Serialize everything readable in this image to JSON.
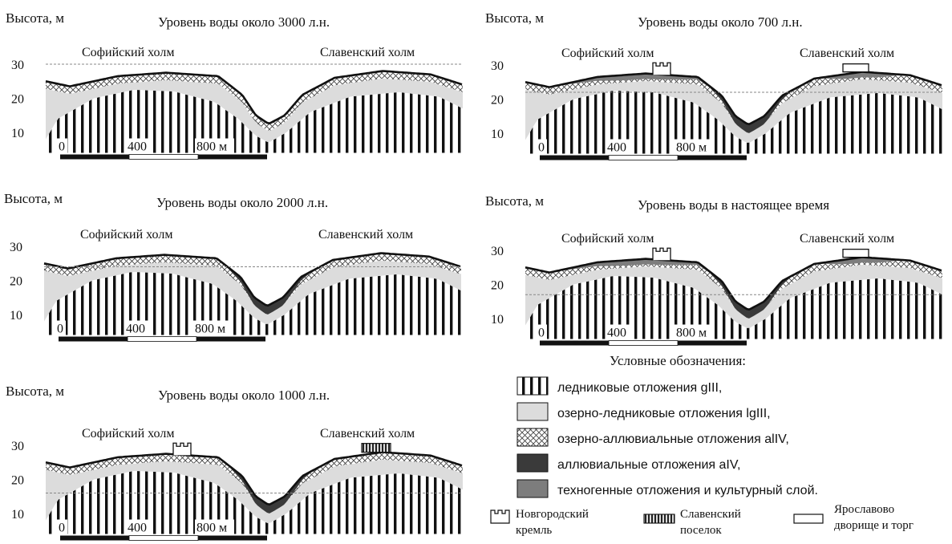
{
  "panels": [
    {
      "id": "p3000",
      "y_axis_label": "Высота, м",
      "title": "Уровень воды около 3000 л.н.",
      "hill_left": "Софийский холм",
      "hill_right": "Славенский холм",
      "y_ticks": [
        "30",
        "20",
        "10"
      ],
      "scale_labels": [
        "0",
        "400",
        "800 м"
      ],
      "water_level_m": 30,
      "layers": [
        "glacial",
        "lake_glacial",
        "lake_alluvial"
      ],
      "structures": []
    },
    {
      "id": "p700",
      "y_axis_label": "Высота, м",
      "title": "Уровень воды около 700 л.н.",
      "hill_left": "Софийский холм",
      "hill_right": "Славенский холм",
      "y_ticks": [
        "30",
        "20",
        "10"
      ],
      "scale_labels": [
        "0",
        "400",
        "800 м"
      ],
      "water_level_m": 22,
      "layers": [
        "glacial",
        "lake_glacial",
        "lake_alluvial",
        "alluvial",
        "technogenic"
      ],
      "structures": [
        "kremlin",
        "yaroslav"
      ]
    },
    {
      "id": "p2000",
      "y_axis_label": "Высота, м",
      "title": "Уровень воды около 2000 л.н.",
      "hill_left": "Софийский холм",
      "hill_right": "Славенский холм",
      "y_ticks": [
        "30",
        "20",
        "10"
      ],
      "scale_labels": [
        "0",
        "400",
        "800 м"
      ],
      "water_level_m": 24,
      "layers": [
        "glacial",
        "lake_glacial",
        "lake_alluvial",
        "alluvial"
      ],
      "structures": []
    },
    {
      "id": "pnow",
      "y_axis_label": "Высота, м",
      "title": "Уровень воды в настоящее время",
      "hill_left": "Софийский холм",
      "hill_right": "Славенский холм",
      "y_ticks": [
        "30",
        "20",
        "10"
      ],
      "scale_labels": [
        "0",
        "400",
        "800 м"
      ],
      "water_level_m": 17,
      "layers": [
        "glacial",
        "lake_glacial",
        "lake_alluvial",
        "alluvial",
        "technogenic"
      ],
      "structures": [
        "kremlin",
        "yaroslav"
      ]
    },
    {
      "id": "p1000",
      "y_axis_label": "Высота, м",
      "title": "Уровень воды около 1000 л.н.",
      "hill_left": "Софийский холм",
      "hill_right": "Славенский холм",
      "y_ticks": [
        "30",
        "20",
        "10"
      ],
      "scale_labels": [
        "0",
        "400",
        "800 м"
      ],
      "water_level_m": 16,
      "layers": [
        "glacial",
        "lake_glacial",
        "lake_alluvial",
        "alluvial"
      ],
      "structures": [
        "kremlin",
        "slavensky"
      ]
    }
  ],
  "legend": {
    "title": "Условные обозначения:",
    "items": [
      {
        "key": "glacial",
        "label": "ледниковые отложения gIII,"
      },
      {
        "key": "lake_glacial",
        "label": "озерно-ледниковые отложения lgIII,"
      },
      {
        "key": "lake_alluvial",
        "label": "озерно-аллювиальные отложения alIV,"
      },
      {
        "key": "alluvial",
        "label": "аллювиальные отложения aIV,"
      },
      {
        "key": "technogenic",
        "label": "техногенные отложения и культурный слой."
      }
    ],
    "symbols": [
      {
        "key": "kremlin",
        "line1": "Новгородский",
        "line2": "кремль"
      },
      {
        "key": "slavensky",
        "line1": "Славенский",
        "line2": "поселок"
      },
      {
        "key": "yaroslav",
        "line1": "Ярославово",
        "line2": "дворище и торг"
      }
    ]
  },
  "colors": {
    "lake_glacial": "#dcdcdc",
    "alluvial": "#3a3a3a",
    "technogenic": "#7d7d7d",
    "surface": "#111111",
    "waterline": "#888888"
  }
}
